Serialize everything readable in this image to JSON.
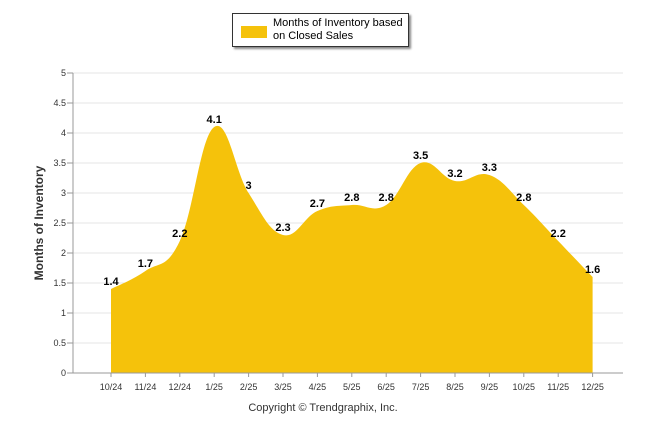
{
  "chart_data": {
    "type": "area",
    "categories": [
      "10/24",
      "11/24",
      "12/24",
      "1/25",
      "2/25",
      "3/25",
      "4/25",
      "5/25",
      "6/25",
      "7/25",
      "8/25",
      "9/25",
      "10/25",
      "11/25",
      "12/25"
    ],
    "series": [
      {
        "name": "Months of Inventory based on Closed Sales",
        "values": [
          1.4,
          1.7,
          2.2,
          4.1,
          3,
          2.3,
          2.7,
          2.8,
          2.8,
          3.5,
          3.2,
          3.3,
          2.8,
          2.2,
          1.6
        ],
        "labels": [
          "1.4",
          "1.7",
          "2.2",
          "4.1",
          "3",
          "2.3",
          "2.7",
          "2.8",
          "2.8",
          "3.5",
          "3.2",
          "3.3",
          "2.8",
          "2.2",
          "1.6"
        ]
      }
    ],
    "ylabel": "Months of Inventory",
    "xlabel": "",
    "ylim": [
      0,
      5
    ],
    "yticks": [
      "0",
      "0.5",
      "1",
      "1.5",
      "2",
      "2.5",
      "3",
      "3.5",
      "4",
      "4.5",
      "5"
    ],
    "grid": true,
    "legend_position": "top-center",
    "color": "#F5C20B"
  },
  "legend": {
    "label": "Months of Inventory based on Closed Sales"
  },
  "footer": {
    "copyright": "Copyright © Trendgraphix, Inc."
  }
}
